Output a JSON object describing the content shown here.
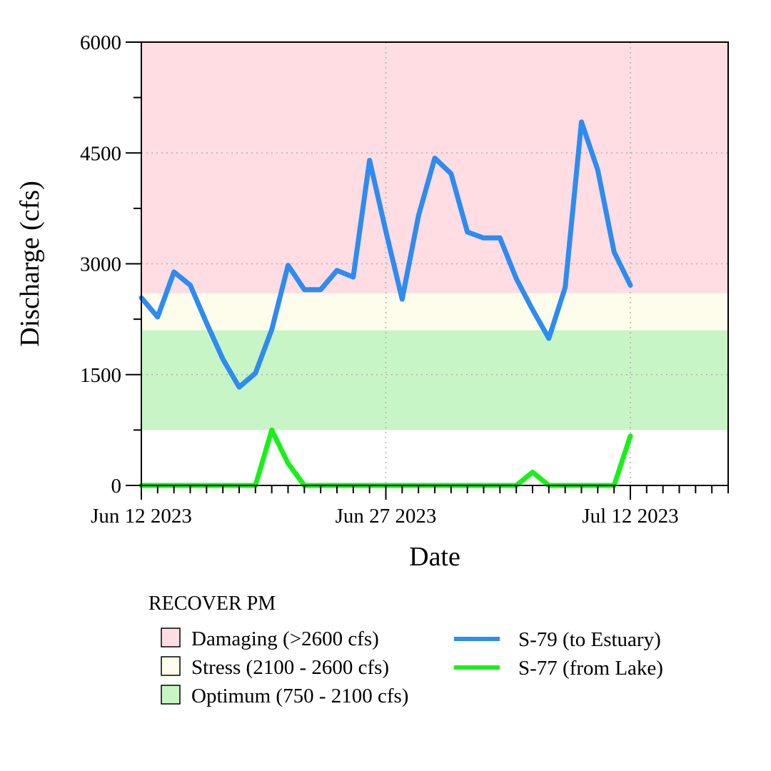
{
  "chart_data": {
    "type": "line",
    "xlabel": "Date",
    "ylabel": "Discharge (cfs)",
    "ylim": [
      0,
      6000
    ],
    "xlim": [
      "2023-06-12",
      "2023-07-18"
    ],
    "grid": true,
    "y_ticks": [
      {
        "value": 0,
        "label": "0"
      },
      {
        "value": 1500,
        "label": "1500"
      },
      {
        "value": 3000,
        "label": "3000"
      },
      {
        "value": 4500,
        "label": "4500"
      },
      {
        "value": 6000,
        "label": "6000"
      }
    ],
    "y_minor_ticks": [
      750,
      2250,
      3750,
      5250
    ],
    "x_ticks": [
      {
        "date": "2023-06-12",
        "label": "Jun 12 2023"
      },
      {
        "date": "2023-06-27",
        "label": "Jun 27 2023"
      },
      {
        "date": "2023-07-12",
        "label": "Jul 12 2023"
      }
    ],
    "bands": [
      {
        "name": "Damaging (>2600 cfs)",
        "from": 2600,
        "to": 6000,
        "color": "#FFDDE3"
      },
      {
        "name": "Stress (2100 - 2600 cfs)",
        "from": 2100,
        "to": 2600,
        "color": "#FEFDEB"
      },
      {
        "name": "Optimum (750 - 2100 cfs)",
        "from": 750,
        "to": 2100,
        "color": "#C8F5C5"
      }
    ],
    "series": [
      {
        "name": "S-79 (to Estuary)",
        "color": "#2E8BF0",
        "x": [
          "2023-06-12",
          "2023-06-13",
          "2023-06-14",
          "2023-06-15",
          "2023-06-16",
          "2023-06-17",
          "2023-06-18",
          "2023-06-19",
          "2023-06-20",
          "2023-06-21",
          "2023-06-22",
          "2023-06-23",
          "2023-06-24",
          "2023-06-25",
          "2023-06-26",
          "2023-06-27",
          "2023-06-28",
          "2023-06-29",
          "2023-06-30",
          "2023-07-01",
          "2023-07-02",
          "2023-07-03",
          "2023-07-04",
          "2023-07-05",
          "2023-07-06",
          "2023-07-07",
          "2023-07-08",
          "2023-07-09",
          "2023-07-10",
          "2023-07-11",
          "2023-07-12"
        ],
        "values": [
          2540,
          2280,
          2890,
          2710,
          2200,
          1710,
          1330,
          1520,
          2110,
          2980,
          2650,
          2650,
          2910,
          2820,
          4400,
          3440,
          2520,
          3650,
          4430,
          4220,
          3430,
          3350,
          3350,
          2800,
          2380,
          1990,
          2680,
          4920,
          4270,
          3160,
          2710
        ]
      },
      {
        "name": "S-77 (from Lake)",
        "color": "#19F019",
        "x": [
          "2023-06-12",
          "2023-06-13",
          "2023-06-14",
          "2023-06-15",
          "2023-06-16",
          "2023-06-17",
          "2023-06-18",
          "2023-06-19",
          "2023-06-20",
          "2023-06-21",
          "2023-06-22",
          "2023-06-23",
          "2023-06-24",
          "2023-06-25",
          "2023-06-26",
          "2023-06-27",
          "2023-06-28",
          "2023-06-29",
          "2023-06-30",
          "2023-07-01",
          "2023-07-02",
          "2023-07-03",
          "2023-07-04",
          "2023-07-05",
          "2023-07-06",
          "2023-07-07",
          "2023-07-08",
          "2023-07-09",
          "2023-07-10",
          "2023-07-11",
          "2023-07-12"
        ],
        "values": [
          0,
          0,
          0,
          0,
          0,
          0,
          0,
          0,
          750,
          300,
          0,
          0,
          0,
          0,
          0,
          0,
          0,
          0,
          0,
          0,
          0,
          0,
          0,
          0,
          180,
          0,
          0,
          0,
          0,
          0,
          670
        ]
      }
    ],
    "legend": {
      "title": "RECOVER PM",
      "placement": "bottom"
    }
  }
}
